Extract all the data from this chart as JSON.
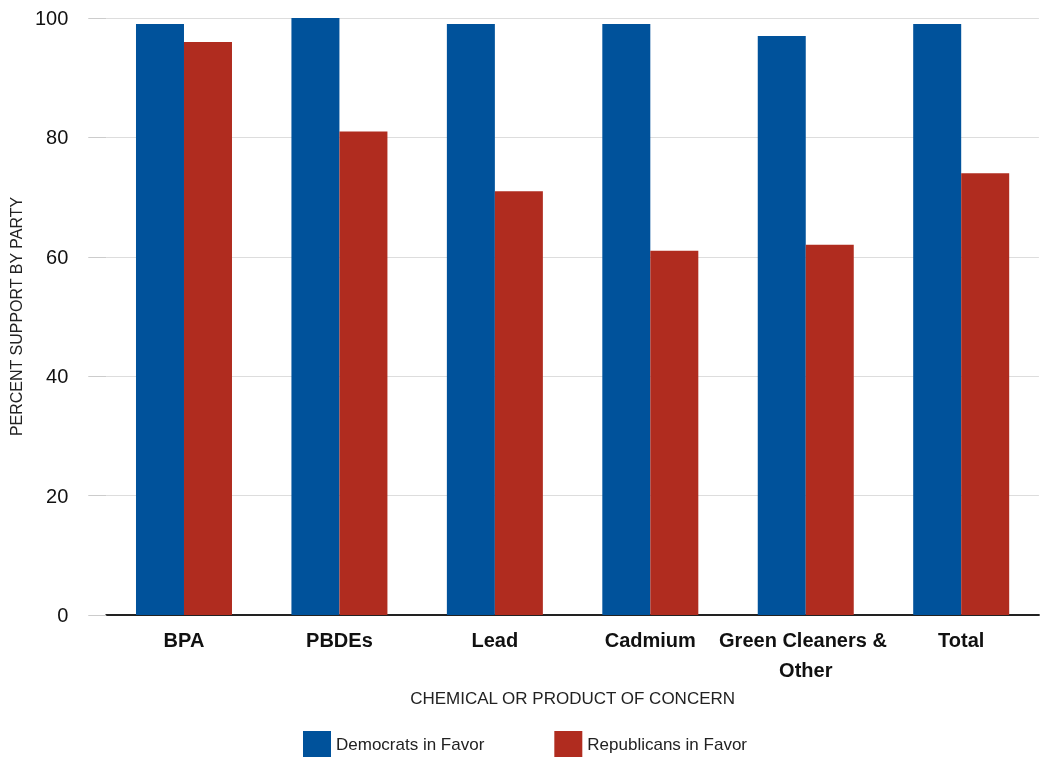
{
  "chart_data": {
    "type": "bar",
    "xlabel": "CHEMICAL OR PRODUCT OF CONCERN",
    "ylabel": "PERCENT SUPPORT BY PARTY",
    "categories": [
      "BPA",
      "PBDEs",
      "Lead",
      "Cadmium",
      "Green Cleaners & Other",
      "Total"
    ],
    "series": [
      {
        "name": "Democrats in Favor",
        "color": "#00529b",
        "values": [
          99,
          100,
          99,
          99,
          97,
          99
        ]
      },
      {
        "name": "Republicans in Favor",
        "color": "#b02c1f",
        "values": [
          96,
          81,
          71,
          61,
          62,
          74
        ]
      }
    ],
    "ylim": [
      0,
      100
    ],
    "yticks": [
      0,
      20,
      40,
      60,
      80,
      100
    ],
    "grid": "y",
    "legend": "bottom"
  }
}
